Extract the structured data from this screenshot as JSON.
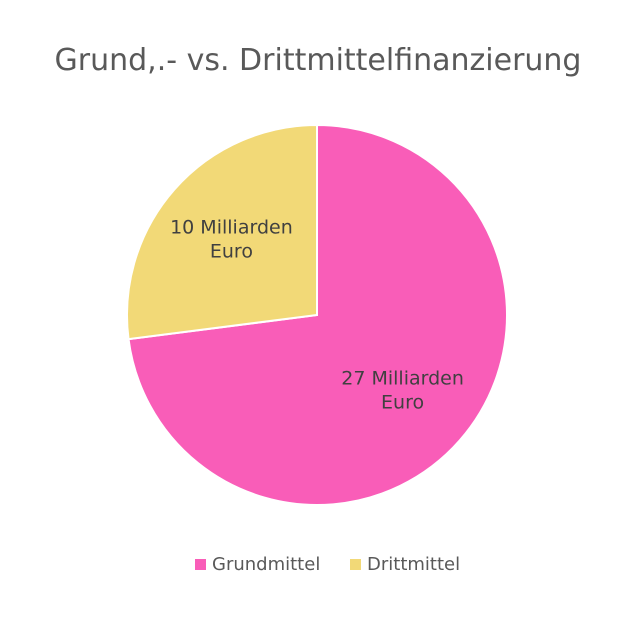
{
  "chart_data": {
    "type": "pie",
    "title": "Grund,.- vs. Drittmittelfinanzierung",
    "categories": [
      "Grundmittel",
      "Drittmittel"
    ],
    "values": [
      27,
      10
    ],
    "unit": "Milliarden Euro",
    "slice_labels": [
      [
        "27 Milliarden",
        "Euro"
      ],
      [
        "10 Milliarden",
        "Euro"
      ]
    ],
    "colors": [
      "#f95db8",
      "#f2d977"
    ],
    "legend": {
      "position": "bottom",
      "entries": [
        "Grundmittel",
        "Drittmittel"
      ]
    }
  }
}
